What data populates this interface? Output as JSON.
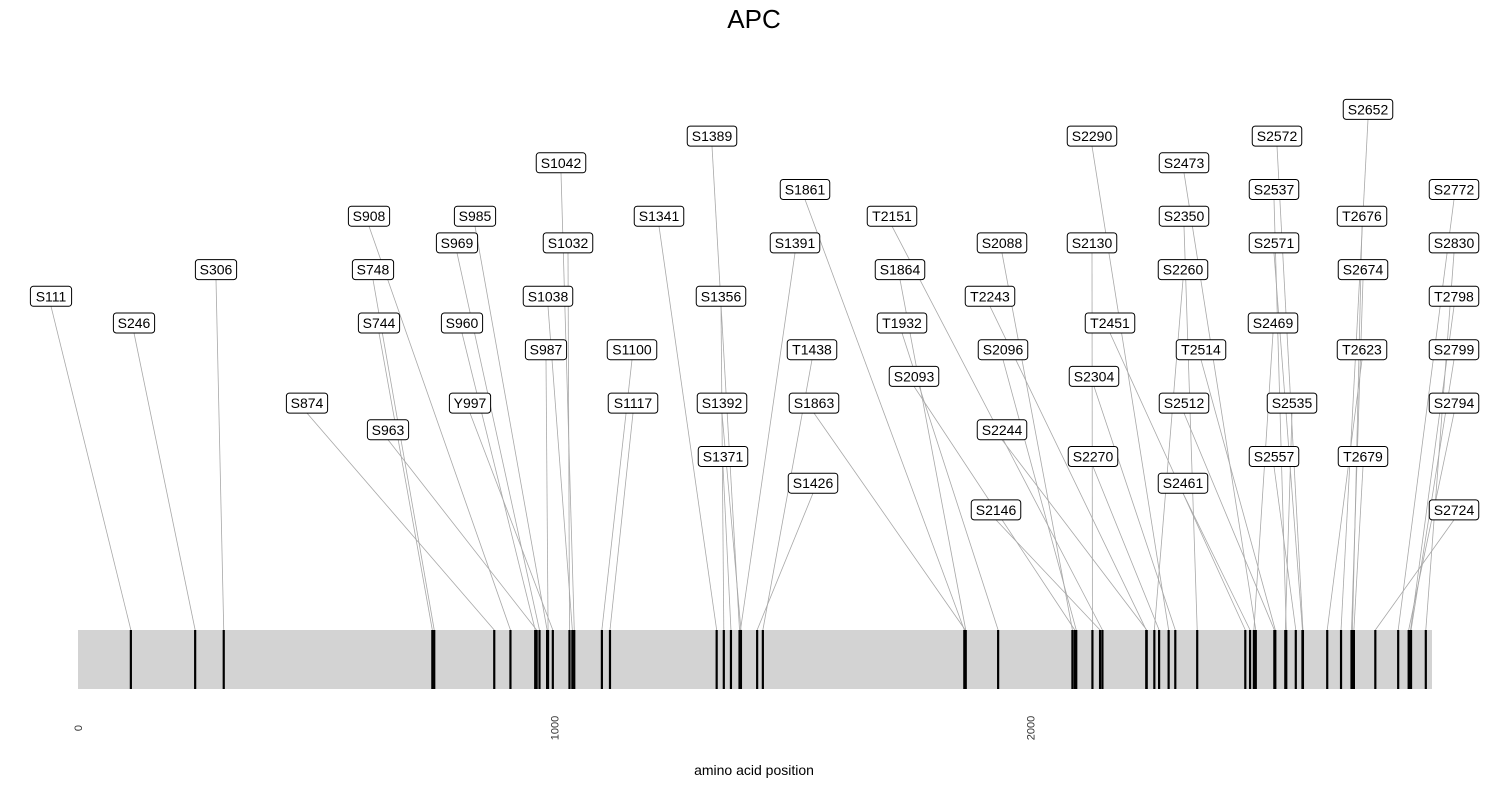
{
  "chart_data": {
    "type": "lollipop",
    "title": "APC",
    "xlabel": "amino acid position",
    "xlim": [
      0,
      2843
    ],
    "xticks": [
      0,
      1000,
      2000
    ],
    "protein_color": "#d3d3d3",
    "mark_color": "#000000",
    "leader_color": "#a8a8a8",
    "sites": [
      {
        "label": "S111",
        "position": 111,
        "tier": 11
      },
      {
        "label": "S246",
        "position": 246,
        "tier": 10
      },
      {
        "label": "S306",
        "position": 306,
        "tier": 12
      },
      {
        "label": "S748",
        "position": 748,
        "tier": 12
      },
      {
        "label": "S744",
        "position": 744,
        "tier": 10
      },
      {
        "label": "S874",
        "position": 874,
        "tier": 7
      },
      {
        "label": "S908",
        "position": 908,
        "tier": 14
      },
      {
        "label": "S963",
        "position": 963,
        "tier": 6
      },
      {
        "label": "S960",
        "position": 960,
        "tier": 10
      },
      {
        "label": "S969",
        "position": 969,
        "tier": 13
      },
      {
        "label": "S985",
        "position": 985,
        "tier": 14
      },
      {
        "label": "Y997",
        "position": 997,
        "tier": 7
      },
      {
        "label": "S987",
        "position": 987,
        "tier": 9
      },
      {
        "label": "S1032",
        "position": 1032,
        "tier": 13
      },
      {
        "label": "S1038",
        "position": 1038,
        "tier": 11
      },
      {
        "label": "S1042",
        "position": 1042,
        "tier": 16
      },
      {
        "label": "S1100",
        "position": 1100,
        "tier": 9
      },
      {
        "label": "S1117",
        "position": 1117,
        "tier": 7
      },
      {
        "label": "S1341",
        "position": 1341,
        "tier": 14
      },
      {
        "label": "S1356",
        "position": 1356,
        "tier": 11
      },
      {
        "label": "S1371",
        "position": 1371,
        "tier": 5
      },
      {
        "label": "S1389",
        "position": 1389,
        "tier": 17
      },
      {
        "label": "S1391",
        "position": 1391,
        "tier": 13
      },
      {
        "label": "S1392",
        "position": 1392,
        "tier": 7
      },
      {
        "label": "S1426",
        "position": 1426,
        "tier": 4
      },
      {
        "label": "T1438",
        "position": 1438,
        "tier": 9
      },
      {
        "label": "S1861",
        "position": 1861,
        "tier": 15
      },
      {
        "label": "S1863",
        "position": 1863,
        "tier": 7
      },
      {
        "label": "S1864",
        "position": 1864,
        "tier": 12
      },
      {
        "label": "T1932",
        "position": 1932,
        "tier": 10
      },
      {
        "label": "S2088",
        "position": 2088,
        "tier": 13
      },
      {
        "label": "S2093",
        "position": 2093,
        "tier": 8
      },
      {
        "label": "S2096",
        "position": 2096,
        "tier": 9
      },
      {
        "label": "S2130",
        "position": 2130,
        "tier": 13
      },
      {
        "label": "S2146",
        "position": 2146,
        "tier": 3
      },
      {
        "label": "T2151",
        "position": 2151,
        "tier": 14
      },
      {
        "label": "T2243",
        "position": 2243,
        "tier": 11
      },
      {
        "label": "S2244",
        "position": 2244,
        "tier": 6
      },
      {
        "label": "S2260",
        "position": 2260,
        "tier": 12
      },
      {
        "label": "S2270",
        "position": 2270,
        "tier": 5
      },
      {
        "label": "S2290",
        "position": 2290,
        "tier": 17
      },
      {
        "label": "S2304",
        "position": 2304,
        "tier": 8
      },
      {
        "label": "S2350",
        "position": 2350,
        "tier": 14
      },
      {
        "label": "T2451",
        "position": 2451,
        "tier": 10
      },
      {
        "label": "S2461",
        "position": 2461,
        "tier": 4
      },
      {
        "label": "S2469",
        "position": 2469,
        "tier": 10
      },
      {
        "label": "S2473",
        "position": 2473,
        "tier": 16
      },
      {
        "label": "S2512",
        "position": 2512,
        "tier": 7
      },
      {
        "label": "T2514",
        "position": 2514,
        "tier": 9
      },
      {
        "label": "S2535",
        "position": 2535,
        "tier": 7
      },
      {
        "label": "S2537",
        "position": 2537,
        "tier": 15
      },
      {
        "label": "S2557",
        "position": 2557,
        "tier": 5
      },
      {
        "label": "S2571",
        "position": 2571,
        "tier": 13
      },
      {
        "label": "S2572",
        "position": 2572,
        "tier": 17
      },
      {
        "label": "T2623",
        "position": 2623,
        "tier": 9
      },
      {
        "label": "S2652",
        "position": 2652,
        "tier": 18
      },
      {
        "label": "S2674",
        "position": 2674,
        "tier": 12
      },
      {
        "label": "T2676",
        "position": 2676,
        "tier": 14
      },
      {
        "label": "T2679",
        "position": 2679,
        "tier": 5
      },
      {
        "label": "S2724",
        "position": 2724,
        "tier": 3
      },
      {
        "label": "S2772",
        "position": 2772,
        "tier": 15
      },
      {
        "label": "S2794",
        "position": 2794,
        "tier": 7
      },
      {
        "label": "T2798",
        "position": 2798,
        "tier": 11
      },
      {
        "label": "S2799",
        "position": 2799,
        "tier": 9
      },
      {
        "label": "S2830",
        "position": 2830,
        "tier": 13
      }
    ]
  },
  "site_label_columns": {
    "S111": 0,
    "S246": 1,
    "S306": 2,
    "S874": 3,
    "S908": 4,
    "S748": 4,
    "S744": 4,
    "S963": 4,
    "S985": 5,
    "S969": 5,
    "S960": 5,
    "Y997": 5,
    "S1042": 6,
    "S1032": 6,
    "S1038": 6,
    "S987": 6,
    "S1341": 7,
    "S1100": 7,
    "S1117": 7,
    "S1389": 8,
    "S1356": 8,
    "S1392": 8,
    "S1371": 8,
    "S1861": 9,
    "S1391": 9,
    "T1438": 9,
    "S1863": 9,
    "S1426": 9,
    "T2151": 10,
    "S1864": 10,
    "T1932": 10,
    "S2093": 10,
    "S2088": 11,
    "T2243": 11,
    "S2096": 11,
    "S2244": 11,
    "S2146": 11,
    "S2290": 12,
    "S2130": 12,
    "S2304": 12,
    "S2270": 12,
    "T2451": 13,
    "S2473": 14,
    "S2350": 14,
    "S2260": 14,
    "S2512": 14,
    "S2461": 14,
    "T2514": 15,
    "S2572": 16,
    "S2537": 16,
    "S2571": 16,
    "S2469": 16,
    "S2557": 16,
    "S2535": 17,
    "S2652": 18,
    "T2676": 19,
    "S2674": 19,
    "T2623": 19,
    "T2679": 19,
    "S2772": 20,
    "S2830": 20,
    "T2798": 20,
    "S2799": 20,
    "S2794": 20,
    "S2724": 20
  }
}
